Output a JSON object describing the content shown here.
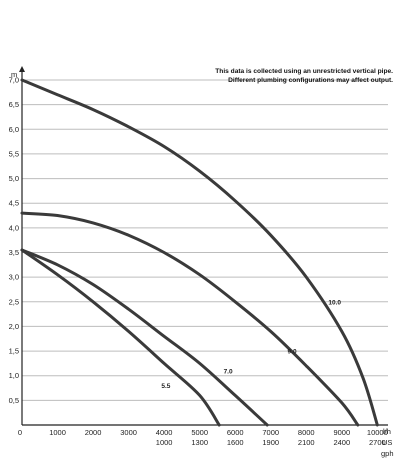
{
  "chart_data": {
    "type": "line",
    "note_lines": [
      "This data is collected using an unrestricted vertical pipe.",
      "Different plumbing configurations may affect output."
    ],
    "ylabel": "m",
    "ylim": [
      0,
      7.0
    ],
    "yticks": [
      "0,5",
      "1,0",
      "1,5",
      "2,0",
      "2,5",
      "3,0",
      "3,5",
      "4,0",
      "4,5",
      "5,0",
      "5,5",
      "6,0",
      "6,5",
      "7,0"
    ],
    "xlim": [
      0,
      10300
    ],
    "xticks_lph": [
      "0",
      "1000",
      "2000",
      "3000",
      "4000",
      "5000",
      "6000",
      "7000",
      "8000",
      "9000",
      "10000"
    ],
    "xticks_gph": [
      "1000",
      "1300",
      "1600",
      "1900",
      "2100",
      "2400",
      "2700"
    ],
    "xticks_gph_lph": [
      4000,
      5000,
      6000,
      7000,
      8000,
      9000,
      10000
    ],
    "x_unit_lph": "l/h",
    "x_unit_us": "US",
    "x_unit_gph": "gph",
    "series": [
      {
        "name": "5.5",
        "points": [
          [
            0,
            3.55
          ],
          [
            1000,
            3.05
          ],
          [
            2000,
            2.5
          ],
          [
            3000,
            1.9
          ],
          [
            4000,
            1.25
          ],
          [
            5000,
            0.6
          ],
          [
            5550,
            0.0
          ]
        ]
      },
      {
        "name": "7.0",
        "points": [
          [
            0,
            3.55
          ],
          [
            1000,
            3.25
          ],
          [
            2000,
            2.85
          ],
          [
            3000,
            2.35
          ],
          [
            4000,
            1.8
          ],
          [
            5000,
            1.25
          ],
          [
            6000,
            0.6
          ],
          [
            6900,
            0.0
          ]
        ]
      },
      {
        "name": "9.0",
        "points": [
          [
            0,
            4.3
          ],
          [
            1000,
            4.25
          ],
          [
            2000,
            4.1
          ],
          [
            3000,
            3.85
          ],
          [
            4000,
            3.5
          ],
          [
            5000,
            3.05
          ],
          [
            6000,
            2.5
          ],
          [
            7000,
            1.9
          ],
          [
            8000,
            1.2
          ],
          [
            9000,
            0.45
          ],
          [
            9450,
            0.0
          ]
        ]
      },
      {
        "name": "10.0",
        "points": [
          [
            0,
            7.0
          ],
          [
            1000,
            6.7
          ],
          [
            2000,
            6.4
          ],
          [
            3000,
            6.05
          ],
          [
            4000,
            5.65
          ],
          [
            5000,
            5.15
          ],
          [
            6000,
            4.55
          ],
          [
            7000,
            3.85
          ],
          [
            8000,
            3.0
          ],
          [
            9000,
            1.9
          ],
          [
            9600,
            0.95
          ],
          [
            10000,
            0.0
          ]
        ]
      }
    ],
    "series_label_anchors": {
      "5.5": [
        4050,
        0.75
      ],
      "7.0": [
        5800,
        1.05
      ],
      "9.0": [
        7600,
        1.45
      ],
      "10.0": [
        8800,
        2.45
      ]
    },
    "grid": true,
    "line_color": "#3a3a3a",
    "grid_color": "#bdbdbd"
  }
}
